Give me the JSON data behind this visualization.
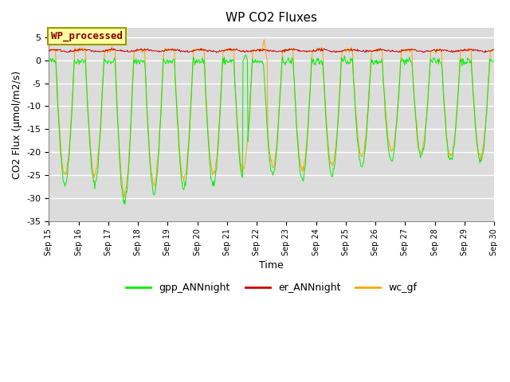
{
  "title": "WP CO2 Fluxes",
  "xlabel": "Time",
  "ylabel": "CO2 Flux (μmol/m2/s)",
  "ylim": [
    -35,
    7
  ],
  "yticks": [
    -35,
    -30,
    -25,
    -20,
    -15,
    -10,
    -5,
    0,
    5
  ],
  "xstart_day": 15,
  "xend_day": 30,
  "n_days": 15,
  "points_per_day": 48,
  "gpp_color": "#00EE00",
  "er_color": "#CC0000",
  "wc_color": "#FFA500",
  "bg_color": "#DCDCDC",
  "legend_labels": [
    "gpp_ANNnight",
    "er_ANNnight",
    "wc_gf"
  ],
  "annotation_text": "WP_processed",
  "annotation_bg": "#FFFFA0",
  "annotation_fg": "#880000",
  "annotation_edge": "#999900"
}
